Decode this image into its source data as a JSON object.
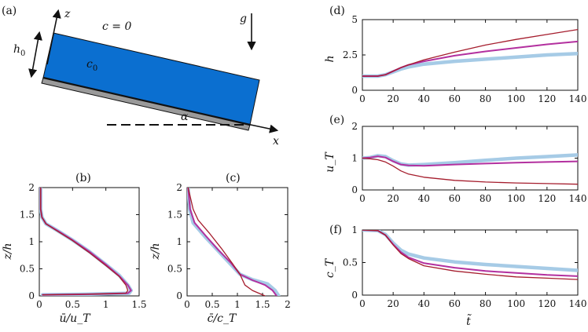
{
  "panel_labels": {
    "a": "(a)",
    "b": "(b)",
    "c": "(c)",
    "d": "(d)",
    "e": "(e)",
    "f": "(f)"
  },
  "schematic": {
    "z_label": "z",
    "x_label": "x",
    "c_outside": "c = 0",
    "c_inside": "c",
    "c_inside_sub": "0",
    "h_label": "h",
    "h_sub": "0",
    "g_label": "g",
    "alpha_label": "α",
    "fill_color": "#0b6fd0",
    "wall_color": "#9a9a9a"
  },
  "colors": {
    "light_blue": "#a6cbe6",
    "magenta": "#b3309f",
    "dark_red": "#a51d2d"
  },
  "chart_data": [
    {
      "id": "b",
      "type": "line",
      "xlabel": "ū/u_T",
      "ylabel": "z/h",
      "xlim": [
        0,
        1.5
      ],
      "ylim": [
        0,
        2
      ],
      "xticks": [
        "0",
        "0.5",
        "1",
        "1.5"
      ],
      "yticks": [
        "0",
        "0.5",
        "1",
        "1.5",
        "2"
      ],
      "series": [
        {
          "color": "light_blue",
          "width": 4.5,
          "points": [
            [
              0.02,
              2.0
            ],
            [
              0.02,
              1.6
            ],
            [
              0.04,
              1.45
            ],
            [
              0.1,
              1.33
            ],
            [
              0.28,
              1.2
            ],
            [
              0.5,
              1.03
            ],
            [
              0.75,
              0.82
            ],
            [
              1.0,
              0.58
            ],
            [
              1.2,
              0.38
            ],
            [
              1.33,
              0.2
            ],
            [
              1.38,
              0.1
            ],
            [
              1.35,
              0.05
            ],
            [
              0.7,
              0.03
            ],
            [
              0.05,
              0.02
            ]
          ]
        },
        {
          "color": "magenta",
          "width": 2,
          "points": [
            [
              0.02,
              2.0
            ],
            [
              0.02,
              1.6
            ],
            [
              0.04,
              1.45
            ],
            [
              0.1,
              1.33
            ],
            [
              0.28,
              1.2
            ],
            [
              0.5,
              1.03
            ],
            [
              0.75,
              0.82
            ],
            [
              1.0,
              0.58
            ],
            [
              1.2,
              0.37
            ],
            [
              1.33,
              0.2
            ],
            [
              1.38,
              0.1
            ],
            [
              1.33,
              0.05
            ],
            [
              0.7,
              0.03
            ],
            [
              0.05,
              0.02
            ]
          ]
        },
        {
          "color": "dark_red",
          "width": 1.3,
          "points": [
            [
              0.02,
              2.0
            ],
            [
              0.02,
              1.6
            ],
            [
              0.04,
              1.45
            ],
            [
              0.1,
              1.33
            ],
            [
              0.28,
              1.19
            ],
            [
              0.5,
              1.02
            ],
            [
              0.75,
              0.8
            ],
            [
              1.0,
              0.56
            ],
            [
              1.2,
              0.36
            ],
            [
              1.3,
              0.2
            ],
            [
              1.33,
              0.1
            ],
            [
              1.3,
              0.05
            ],
            [
              0.7,
              0.03
            ],
            [
              0.05,
              0.02
            ]
          ]
        }
      ]
    },
    {
      "id": "c",
      "type": "line",
      "xlabel": "c̄/c_T",
      "ylabel": "z/h",
      "xlim": [
        0,
        2
      ],
      "ylim": [
        0,
        2
      ],
      "xticks": [
        "0",
        "0.5",
        "1",
        "1.5",
        "2"
      ],
      "yticks": [
        "0",
        "0.5",
        "1",
        "1.5",
        "2"
      ],
      "series": [
        {
          "color": "light_blue",
          "width": 4.5,
          "points": [
            [
              0.02,
              2.0
            ],
            [
              0.05,
              1.6
            ],
            [
              0.12,
              1.35
            ],
            [
              0.35,
              1.1
            ],
            [
              0.6,
              0.85
            ],
            [
              0.85,
              0.6
            ],
            [
              1.05,
              0.4
            ],
            [
              1.3,
              0.3
            ],
            [
              1.6,
              0.22
            ],
            [
              1.75,
              0.1
            ],
            [
              1.82,
              0.0
            ]
          ]
        },
        {
          "color": "magenta",
          "width": 2,
          "points": [
            [
              0.02,
              2.0
            ],
            [
              0.06,
              1.6
            ],
            [
              0.15,
              1.35
            ],
            [
              0.38,
              1.1
            ],
            [
              0.62,
              0.85
            ],
            [
              0.88,
              0.6
            ],
            [
              1.05,
              0.4
            ],
            [
              1.3,
              0.29
            ],
            [
              1.55,
              0.2
            ],
            [
              1.7,
              0.1
            ],
            [
              1.78,
              0.0
            ]
          ]
        },
        {
          "color": "dark_red",
          "width": 1.3,
          "points": [
            [
              0.02,
              2.0
            ],
            [
              0.12,
              1.6
            ],
            [
              0.22,
              1.4
            ],
            [
              0.45,
              1.15
            ],
            [
              0.68,
              0.88
            ],
            [
              0.9,
              0.6
            ],
            [
              1.05,
              0.4
            ],
            [
              1.15,
              0.2
            ],
            [
              1.3,
              0.1
            ],
            [
              1.5,
              0.02
            ],
            [
              1.55,
              0.0
            ]
          ]
        }
      ]
    },
    {
      "id": "d",
      "type": "line",
      "xlabel": "",
      "ylabel": "h",
      "xlim": [
        0,
        140
      ],
      "ylim": [
        0,
        5
      ],
      "xticks": [
        "0",
        "20",
        "40",
        "60",
        "80",
        "100",
        "120",
        "140"
      ],
      "yticks": [
        "0",
        "2.5",
        "5"
      ],
      "yticks_values": [
        0,
        2.5,
        5
      ],
      "series": [
        {
          "color": "light_blue",
          "width": 4.5,
          "points": [
            [
              0,
              1.0
            ],
            [
              10,
              1.0
            ],
            [
              15,
              1.1
            ],
            [
              20,
              1.3
            ],
            [
              25,
              1.5
            ],
            [
              30,
              1.65
            ],
            [
              40,
              1.85
            ],
            [
              60,
              2.05
            ],
            [
              80,
              2.2
            ],
            [
              100,
              2.35
            ],
            [
              120,
              2.5
            ],
            [
              140,
              2.6
            ]
          ]
        },
        {
          "color": "magenta",
          "width": 2,
          "points": [
            [
              0,
              1.0
            ],
            [
              10,
              1.0
            ],
            [
              15,
              1.1
            ],
            [
              20,
              1.35
            ],
            [
              25,
              1.6
            ],
            [
              30,
              1.8
            ],
            [
              40,
              2.05
            ],
            [
              60,
              2.45
            ],
            [
              80,
              2.75
            ],
            [
              100,
              3.0
            ],
            [
              120,
              3.25
            ],
            [
              140,
              3.45
            ]
          ]
        },
        {
          "color": "dark_red",
          "width": 1.3,
          "points": [
            [
              0,
              1.0
            ],
            [
              10,
              1.0
            ],
            [
              15,
              1.1
            ],
            [
              20,
              1.35
            ],
            [
              25,
              1.6
            ],
            [
              30,
              1.8
            ],
            [
              40,
              2.15
            ],
            [
              60,
              2.7
            ],
            [
              80,
              3.2
            ],
            [
              100,
              3.6
            ],
            [
              120,
              3.95
            ],
            [
              140,
              4.3
            ]
          ]
        }
      ]
    },
    {
      "id": "e",
      "type": "line",
      "xlabel": "",
      "ylabel": "u_T",
      "xlim": [
        0,
        140
      ],
      "ylim": [
        0,
        2
      ],
      "xticks": [
        "0",
        "20",
        "40",
        "60",
        "80",
        "100",
        "120",
        "140"
      ],
      "yticks": [
        "0",
        "1",
        "2"
      ],
      "yticks_values": [
        0,
        1,
        2
      ],
      "series": [
        {
          "color": "light_blue",
          "width": 4.5,
          "points": [
            [
              0,
              1.0
            ],
            [
              5,
              1.02
            ],
            [
              10,
              1.08
            ],
            [
              15,
              1.05
            ],
            [
              20,
              0.92
            ],
            [
              25,
              0.82
            ],
            [
              30,
              0.78
            ],
            [
              40,
              0.8
            ],
            [
              60,
              0.86
            ],
            [
              80,
              0.93
            ],
            [
              100,
              1.0
            ],
            [
              120,
              1.05
            ],
            [
              140,
              1.1
            ]
          ]
        },
        {
          "color": "magenta",
          "width": 2,
          "points": [
            [
              0,
              1.0
            ],
            [
              5,
              1.02
            ],
            [
              10,
              1.06
            ],
            [
              15,
              1.02
            ],
            [
              20,
              0.9
            ],
            [
              25,
              0.8
            ],
            [
              30,
              0.77
            ],
            [
              40,
              0.76
            ],
            [
              60,
              0.8
            ],
            [
              80,
              0.83
            ],
            [
              100,
              0.86
            ],
            [
              120,
              0.88
            ],
            [
              140,
              0.9
            ]
          ]
        },
        {
          "color": "dark_red",
          "width": 1.3,
          "points": [
            [
              0,
              1.0
            ],
            [
              5,
              0.98
            ],
            [
              10,
              0.95
            ],
            [
              15,
              0.88
            ],
            [
              20,
              0.75
            ],
            [
              25,
              0.6
            ],
            [
              30,
              0.5
            ],
            [
              40,
              0.4
            ],
            [
              60,
              0.3
            ],
            [
              80,
              0.25
            ],
            [
              100,
              0.22
            ],
            [
              120,
              0.2
            ],
            [
              140,
              0.18
            ]
          ]
        }
      ]
    },
    {
      "id": "f",
      "type": "line",
      "xlabel": "t̃",
      "ylabel": "c_T",
      "xlim": [
        0,
        140
      ],
      "ylim": [
        0,
        1
      ],
      "xticks": [
        "0",
        "20",
        "40",
        "60",
        "80",
        "100",
        "120",
        "140"
      ],
      "yticks": [
        "0",
        "0.5",
        "1"
      ],
      "yticks_values": [
        0,
        0.5,
        1
      ],
      "series": [
        {
          "color": "light_blue",
          "width": 4.5,
          "points": [
            [
              0,
              1.0
            ],
            [
              10,
              0.99
            ],
            [
              15,
              0.93
            ],
            [
              20,
              0.8
            ],
            [
              25,
              0.69
            ],
            [
              30,
              0.63
            ],
            [
              40,
              0.57
            ],
            [
              60,
              0.51
            ],
            [
              80,
              0.47
            ],
            [
              100,
              0.44
            ],
            [
              120,
              0.41
            ],
            [
              140,
              0.38
            ]
          ]
        },
        {
          "color": "magenta",
          "width": 2,
          "points": [
            [
              0,
              1.0
            ],
            [
              10,
              0.99
            ],
            [
              15,
              0.92
            ],
            [
              20,
              0.78
            ],
            [
              25,
              0.66
            ],
            [
              30,
              0.58
            ],
            [
              40,
              0.49
            ],
            [
              60,
              0.42
            ],
            [
              80,
              0.37
            ],
            [
              100,
              0.34
            ],
            [
              120,
              0.31
            ],
            [
              140,
              0.29
            ]
          ]
        },
        {
          "color": "dark_red",
          "width": 1.3,
          "points": [
            [
              0,
              1.0
            ],
            [
              10,
              0.99
            ],
            [
              15,
              0.92
            ],
            [
              20,
              0.77
            ],
            [
              25,
              0.64
            ],
            [
              30,
              0.56
            ],
            [
              40,
              0.45
            ],
            [
              60,
              0.37
            ],
            [
              80,
              0.32
            ],
            [
              100,
              0.28
            ],
            [
              120,
              0.26
            ],
            [
              140,
              0.24
            ]
          ]
        }
      ]
    }
  ]
}
